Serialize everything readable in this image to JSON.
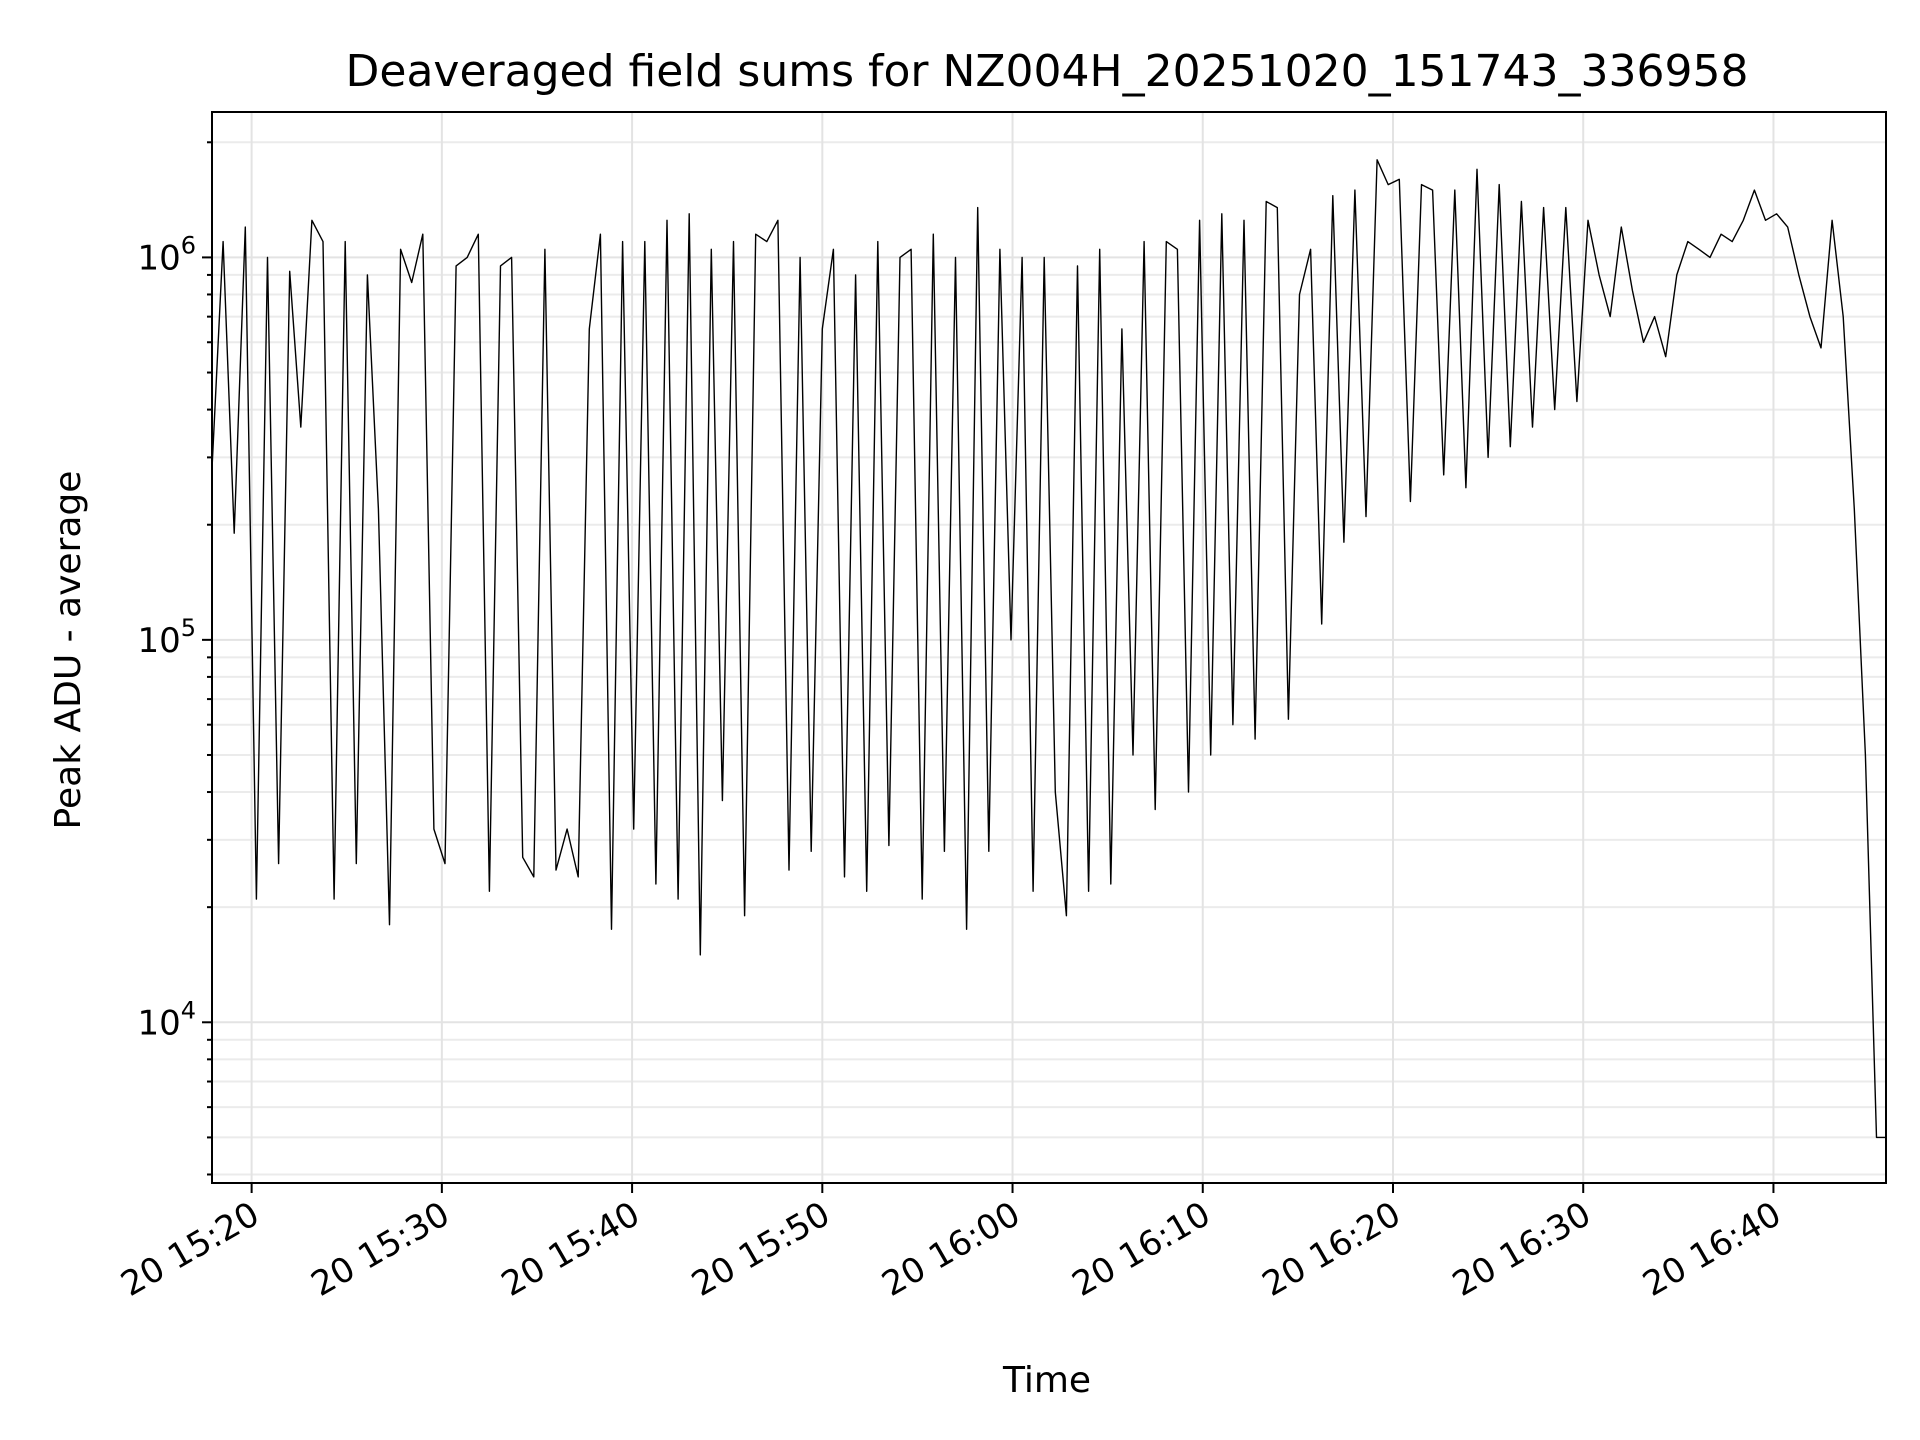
{
  "chart_data": {
    "type": "line",
    "title": "Deaveraged field sums for NZ004H_20251020_151743_336958",
    "xlabel": "Time",
    "ylabel": "Peak ADU - average",
    "yscale": "log",
    "ylim": [
      3800,
      2400000
    ],
    "xlim": [
      "2025-10-20 15:17:55",
      "2025-10-20 16:45:55"
    ],
    "x_ticks": [
      {
        "value": "2025-10-20 15:20",
        "label": "20 15:20"
      },
      {
        "value": "2025-10-20 15:30",
        "label": "20 15:30"
      },
      {
        "value": "2025-10-20 15:40",
        "label": "20 15:40"
      },
      {
        "value": "2025-10-20 15:50",
        "label": "20 15:50"
      },
      {
        "value": "2025-10-20 16:00",
        "label": "20 16:00"
      },
      {
        "value": "2025-10-20 16:10",
        "label": "20 16:10"
      },
      {
        "value": "2025-10-20 16:20",
        "label": "20 16:20"
      },
      {
        "value": "2025-10-20 16:30",
        "label": "20 16:30"
      },
      {
        "value": "2025-10-20 16:40",
        "label": "20 16:40"
      }
    ],
    "y_ticks": [
      {
        "value": 10000,
        "base": "10",
        "exp": "4"
      },
      {
        "value": 100000,
        "base": "10",
        "exp": "5"
      },
      {
        "value": 1000000,
        "base": "10",
        "exp": "6"
      }
    ],
    "grid": true,
    "line_color": "#000000",
    "series": [
      {
        "x": [
          "2025-10-20 15:17:55",
          "2025-10-20 15:18:30",
          "2025-10-20 15:19:05",
          "2025-10-20 15:19:40",
          "2025-10-20 15:20:15",
          "2025-10-20 15:20:50",
          "2025-10-20 15:21:25",
          "2025-10-20 15:22:00",
          "2025-10-20 15:22:35",
          "2025-10-20 15:23:10",
          "2025-10-20 15:23:45",
          "2025-10-20 15:24:20",
          "2025-10-20 15:24:55",
          "2025-10-20 15:25:30",
          "2025-10-20 15:26:05",
          "2025-10-20 15:26:40",
          "2025-10-20 15:27:15",
          "2025-10-20 15:27:50",
          "2025-10-20 15:28:25",
          "2025-10-20 15:29:00",
          "2025-10-20 15:29:35",
          "2025-10-20 15:30:10",
          "2025-10-20 15:30:45",
          "2025-10-20 15:31:20",
          "2025-10-20 15:31:55",
          "2025-10-20 15:32:30",
          "2025-10-20 15:33:05",
          "2025-10-20 15:33:40",
          "2025-10-20 15:34:15",
          "2025-10-20 15:34:50",
          "2025-10-20 15:35:25",
          "2025-10-20 15:36:00",
          "2025-10-20 15:36:35",
          "2025-10-20 15:37:10",
          "2025-10-20 15:37:45",
          "2025-10-20 15:38:20",
          "2025-10-20 15:38:55",
          "2025-10-20 15:39:30",
          "2025-10-20 15:40:05",
          "2025-10-20 15:40:40",
          "2025-10-20 15:41:15",
          "2025-10-20 15:41:50",
          "2025-10-20 15:42:25",
          "2025-10-20 15:43:00",
          "2025-10-20 15:43:35",
          "2025-10-20 15:44:10",
          "2025-10-20 15:44:45",
          "2025-10-20 15:45:20",
          "2025-10-20 15:45:55",
          "2025-10-20 15:46:30",
          "2025-10-20 15:47:05",
          "2025-10-20 15:47:40",
          "2025-10-20 15:48:15",
          "2025-10-20 15:48:50",
          "2025-10-20 15:49:25",
          "2025-10-20 15:50:00",
          "2025-10-20 15:50:35",
          "2025-10-20 15:51:10",
          "2025-10-20 15:51:45",
          "2025-10-20 15:52:20",
          "2025-10-20 15:52:55",
          "2025-10-20 15:53:30",
          "2025-10-20 15:54:05",
          "2025-10-20 15:54:40",
          "2025-10-20 15:55:15",
          "2025-10-20 15:55:50",
          "2025-10-20 15:56:25",
          "2025-10-20 15:57:00",
          "2025-10-20 15:57:35",
          "2025-10-20 15:58:10",
          "2025-10-20 15:58:45",
          "2025-10-20 15:59:20",
          "2025-10-20 15:59:55",
          "2025-10-20 16:00:30",
          "2025-10-20 16:01:05",
          "2025-10-20 16:01:40",
          "2025-10-20 16:02:15",
          "2025-10-20 16:02:50",
          "2025-10-20 16:03:25",
          "2025-10-20 16:04:00",
          "2025-10-20 16:04:35",
          "2025-10-20 16:05:10",
          "2025-10-20 16:05:45",
          "2025-10-20 16:06:20",
          "2025-10-20 16:06:55",
          "2025-10-20 16:07:30",
          "2025-10-20 16:08:05",
          "2025-10-20 16:08:40",
          "2025-10-20 16:09:15",
          "2025-10-20 16:09:50",
          "2025-10-20 16:10:25",
          "2025-10-20 16:11:00",
          "2025-10-20 16:11:35",
          "2025-10-20 16:12:10",
          "2025-10-20 16:12:45",
          "2025-10-20 16:13:20",
          "2025-10-20 16:13:55",
          "2025-10-20 16:14:30",
          "2025-10-20 16:15:05",
          "2025-10-20 16:15:40",
          "2025-10-20 16:16:15",
          "2025-10-20 16:16:50",
          "2025-10-20 16:17:25",
          "2025-10-20 16:18:00",
          "2025-10-20 16:18:35",
          "2025-10-20 16:19:10",
          "2025-10-20 16:19:45",
          "2025-10-20 16:20:20",
          "2025-10-20 16:20:55",
          "2025-10-20 16:21:30",
          "2025-10-20 16:22:05",
          "2025-10-20 16:22:40",
          "2025-10-20 16:23:15",
          "2025-10-20 16:23:50",
          "2025-10-20 16:24:25",
          "2025-10-20 16:25:00",
          "2025-10-20 16:25:35",
          "2025-10-20 16:26:10",
          "2025-10-20 16:26:45",
          "2025-10-20 16:27:20",
          "2025-10-20 16:27:55",
          "2025-10-20 16:28:30",
          "2025-10-20 16:29:05",
          "2025-10-20 16:29:40",
          "2025-10-20 16:30:15",
          "2025-10-20 16:30:50",
          "2025-10-20 16:31:25",
          "2025-10-20 16:32:00",
          "2025-10-20 16:32:35",
          "2025-10-20 16:33:10",
          "2025-10-20 16:33:45",
          "2025-10-20 16:34:20",
          "2025-10-20 16:34:55",
          "2025-10-20 16:35:30",
          "2025-10-20 16:36:05",
          "2025-10-20 16:36:40",
          "2025-10-20 16:37:15",
          "2025-10-20 16:37:50",
          "2025-10-20 16:38:25",
          "2025-10-20 16:39:00",
          "2025-10-20 16:39:35",
          "2025-10-20 16:40:10",
          "2025-10-20 16:40:45",
          "2025-10-20 16:41:20",
          "2025-10-20 16:41:55",
          "2025-10-20 16:42:30",
          "2025-10-20 16:43:05",
          "2025-10-20 16:43:40",
          "2025-10-20 16:44:15",
          "2025-10-20 16:44:50",
          "2025-10-20 16:45:25",
          "2025-10-20 16:45:55"
        ],
        "y": [
          280000,
          1100000,
          190000,
          1200000,
          21000,
          1000000,
          26000,
          920000,
          360000,
          1250000,
          1100000,
          21000,
          1100000,
          26000,
          900000,
          220000,
          18000,
          1050000,
          860000,
          1150000,
          32000,
          26000,
          950000,
          1000000,
          1150000,
          22000,
          950000,
          1000000,
          27000,
          24000,
          1050000,
          25000,
          32000,
          24000,
          650000,
          1150000,
          17500,
          1100000,
          32000,
          1100000,
          23000,
          1250000,
          21000,
          1300000,
          15000,
          1050000,
          38000,
          1100000,
          19000,
          1150000,
          1100000,
          1250000,
          25000,
          1000000,
          28000,
          650000,
          1050000,
          24000,
          900000,
          22000,
          1100000,
          29000,
          1000000,
          1050000,
          21000,
          1150000,
          28000,
          1000000,
          17500,
          1350000,
          28000,
          1050000,
          100000,
          1000000,
          22000,
          1000000,
          40000,
          19000,
          950000,
          22000,
          1050000,
          23000,
          650000,
          50000,
          1100000,
          36000,
          1100000,
          1050000,
          40000,
          1250000,
          50000,
          1300000,
          60000,
          1250000,
          55000,
          1400000,
          1350000,
          62000,
          800000,
          1050000,
          110000,
          1450000,
          180000,
          1500000,
          210000,
          1800000,
          1550000,
          1600000,
          230000,
          1550000,
          1500000,
          270000,
          1500000,
          250000,
          1700000,
          300000,
          1550000,
          320000,
          1400000,
          360000,
          1350000,
          400000,
          1350000,
          420000,
          1250000,
          900000,
          700000,
          1200000,
          820000,
          600000,
          700000,
          550000,
          900000,
          1100000,
          1050000,
          1000000,
          1150000,
          1100000,
          1250000,
          1500000,
          1250000,
          1300000,
          1200000,
          900000,
          700000,
          580000,
          1250000,
          700000,
          220000,
          50000,
          5000,
          5000
        ],
        "style": "thin black solid line"
      }
    ]
  }
}
